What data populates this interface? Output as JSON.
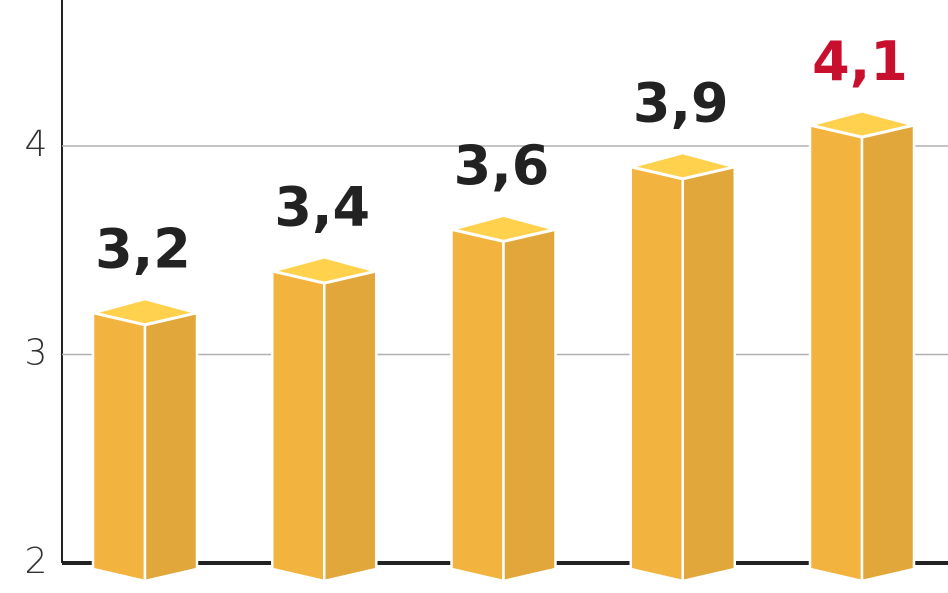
{
  "chart_data": {
    "type": "bar3d",
    "values": [
      3.2,
      3.4,
      3.6,
      3.9,
      4.1
    ],
    "value_labels": [
      "3,2",
      "3,4",
      "3,6",
      "3,9",
      "4,1"
    ],
    "value_label_colors": [
      "#222222",
      "#222222",
      "#222222",
      "#222222",
      "#c8102e"
    ],
    "color": "#f2b43e",
    "ylim": [
      2,
      4.7
    ],
    "yticks": [
      2,
      3,
      4
    ],
    "grid": true
  }
}
